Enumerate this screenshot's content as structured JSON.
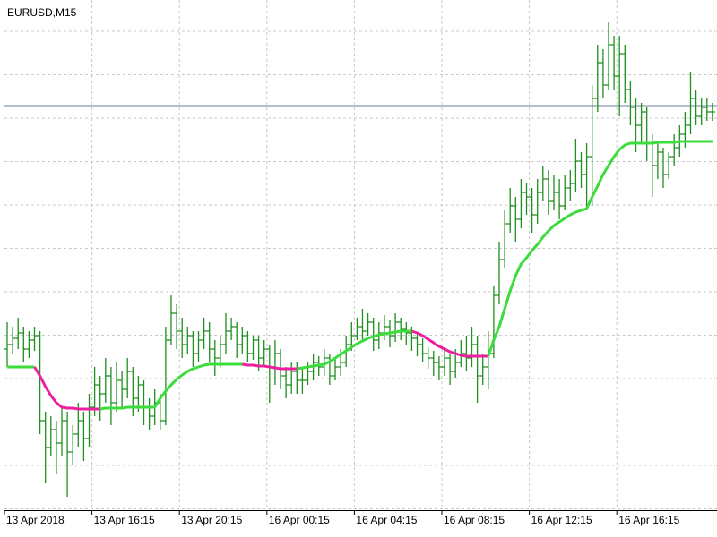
{
  "chart_data": {
    "type": "ohlc",
    "title": "EURUSD,M15",
    "categories": [
      "13 Apr 2018",
      null,
      null,
      null,
      null,
      null,
      null,
      null,
      null,
      null,
      null,
      null,
      null,
      null,
      null,
      null,
      "13 Apr 16:15",
      null,
      null,
      null,
      null,
      null,
      null,
      null,
      null,
      null,
      null,
      null,
      null,
      null,
      null,
      null,
      "13 Apr 20:15",
      null,
      null,
      null,
      null,
      null,
      null,
      null,
      null,
      null,
      null,
      null,
      null,
      null,
      null,
      null,
      "16 Apr 00:15",
      null,
      null,
      null,
      null,
      null,
      null,
      null,
      null,
      null,
      null,
      null,
      null,
      null,
      null,
      null,
      "16 Apr 04:15",
      null,
      null,
      null,
      null,
      null,
      null,
      null,
      null,
      null,
      null,
      null,
      null,
      null,
      null,
      null,
      "16 Apr 08:15",
      null,
      null,
      null,
      null,
      null,
      null,
      null,
      null,
      null,
      null,
      null,
      null,
      null,
      null,
      null,
      "16 Apr 12:15",
      null,
      null,
      null,
      null,
      null,
      null,
      null,
      null,
      null,
      null,
      null,
      null,
      null,
      null,
      null,
      "16 Apr 16:15",
      null,
      null,
      null,
      null,
      null,
      null,
      null,
      null,
      null,
      null,
      null,
      null,
      null,
      null,
      null,
      null,
      null
    ],
    "open": [
      180,
      185,
      192,
      198,
      180,
      190,
      195,
      100,
      70,
      90,
      75,
      100,
      65,
      85,
      100,
      80,
      115,
      140,
      130,
      150,
      120,
      145,
      135,
      155,
      125,
      140,
      115,
      105,
      120,
      100,
      190,
      220,
      200,
      185,
      195,
      175,
      190,
      200,
      180,
      170,
      185,
      200,
      205,
      185,
      195,
      175,
      190,
      170,
      180,
      160,
      175,
      150,
      140,
      155,
      145,
      145,
      155,
      165,
      160,
      170,
      150,
      160,
      165,
      185,
      195,
      205,
      200,
      210,
      190,
      198,
      205,
      195,
      210,
      202,
      198,
      192,
      185,
      175,
      170,
      165,
      160,
      170,
      155,
      165,
      175,
      170,
      185,
      150,
      160,
      175,
      240,
      280,
      320,
      340,
      325,
      355,
      350,
      330,
      355,
      370,
      345,
      355,
      340,
      360,
      365,
      390,
      375,
      395,
      460,
      500,
      475,
      520,
      485,
      510,
      470,
      450,
      430,
      445,
      410,
      385,
      400,
      375,
      395,
      405,
      420,
      430,
      460,
      440,
      450,
      445
    ],
    "high": [
      210,
      205,
      215,
      205,
      200,
      205,
      200,
      110,
      105,
      100,
      115,
      110,
      95,
      120,
      110,
      130,
      160,
      150,
      170,
      160,
      165,
      155,
      170,
      160,
      150,
      145,
      125,
      135,
      130,
      205,
      240,
      230,
      215,
      205,
      200,
      200,
      215,
      210,
      190,
      195,
      220,
      215,
      210,
      205,
      200,
      195,
      195,
      190,
      185,
      190,
      180,
      160,
      165,
      165,
      160,
      165,
      175,
      172,
      180,
      175,
      170,
      180,
      195,
      210,
      215,
      225,
      220,
      215,
      210,
      218,
      212,
      220,
      215,
      210,
      205,
      198,
      192,
      182,
      178,
      172,
      180,
      175,
      180,
      190,
      195,
      205,
      195,
      175,
      200,
      250,
      300,
      335,
      360,
      350,
      370,
      365,
      360,
      370,
      385,
      380,
      375,
      370,
      375,
      380,
      415,
      400,
      410,
      475,
      520,
      515,
      545,
      530,
      530,
      520,
      480,
      460,
      455,
      450,
      420,
      410,
      405,
      400,
      420,
      430,
      445,
      490,
      470,
      460,
      460,
      455
    ],
    "low": [
      160,
      175,
      180,
      165,
      170,
      178,
      85,
      30,
      60,
      40,
      60,
      15,
      50,
      70,
      55,
      70,
      105,
      100,
      120,
      95,
      110,
      115,
      125,
      105,
      110,
      95,
      90,
      95,
      90,
      95,
      185,
      180,
      170,
      175,
      160,
      165,
      180,
      165,
      150,
      160,
      175,
      190,
      170,
      175,
      165,
      168,
      155,
      160,
      120,
      140,
      135,
      125,
      130,
      130,
      130,
      140,
      145,
      150,
      150,
      140,
      145,
      150,
      160,
      178,
      190,
      188,
      195,
      178,
      180,
      190,
      182,
      188,
      190,
      185,
      178,
      172,
      165,
      158,
      150,
      145,
      150,
      140,
      148,
      160,
      155,
      160,
      120,
      140,
      135,
      170,
      230,
      270,
      310,
      300,
      315,
      330,
      310,
      320,
      345,
      330,
      335,
      325,
      335,
      345,
      355,
      360,
      335,
      340,
      445,
      460,
      470,
      470,
      440,
      455,
      430,
      400,
      410,
      390,
      350,
      370,
      360,
      370,
      385,
      395,
      405,
      420,
      430,
      430,
      435,
      435
    ],
    "close": [
      185,
      192,
      198,
      180,
      190,
      195,
      100,
      70,
      90,
      75,
      100,
      65,
      85,
      100,
      80,
      115,
      140,
      130,
      150,
      120,
      145,
      135,
      155,
      125,
      140,
      115,
      105,
      120,
      100,
      190,
      220,
      200,
      185,
      195,
      175,
      190,
      200,
      180,
      170,
      185,
      200,
      205,
      185,
      195,
      175,
      190,
      170,
      180,
      160,
      175,
      150,
      140,
      155,
      145,
      145,
      155,
      165,
      160,
      170,
      150,
      160,
      165,
      185,
      195,
      205,
      200,
      210,
      190,
      198,
      205,
      195,
      210,
      202,
      198,
      192,
      185,
      175,
      170,
      165,
      160,
      170,
      155,
      165,
      175,
      170,
      185,
      150,
      160,
      175,
      240,
      280,
      320,
      340,
      325,
      355,
      350,
      330,
      355,
      370,
      345,
      355,
      340,
      360,
      365,
      390,
      375,
      395,
      460,
      500,
      475,
      520,
      485,
      510,
      470,
      450,
      430,
      445,
      410,
      385,
      400,
      375,
      395,
      405,
      420,
      430,
      460,
      440,
      450,
      445,
      445
    ],
    "color": "#1f8f1f",
    "ma": {
      "values": [
        160,
        160,
        160,
        160,
        160,
        160,
        150,
        138,
        128,
        120,
        115,
        114,
        114,
        113,
        113,
        113,
        113,
        113,
        114,
        114,
        114,
        114,
        115,
        115,
        115,
        115,
        115,
        115,
        125,
        133,
        140,
        146,
        151,
        155,
        158,
        160,
        162,
        163,
        163,
        163,
        163,
        163,
        163,
        163,
        162,
        162,
        161,
        161,
        160,
        159,
        158,
        158,
        158,
        158,
        159,
        160,
        161,
        162,
        163,
        166,
        170,
        174,
        178,
        182,
        186,
        189,
        192,
        194,
        196,
        197,
        198,
        199,
        200,
        200,
        200,
        198,
        195,
        191,
        187,
        183,
        180,
        177,
        175,
        173,
        172,
        172,
        172,
        172,
        172,
        190,
        205,
        225,
        245,
        262,
        275,
        282,
        290,
        297,
        305,
        312,
        318,
        322,
        326,
        330,
        333,
        335,
        337,
        350,
        362,
        375,
        385,
        395,
        403,
        408,
        410,
        410,
        410,
        410,
        410,
        411,
        411,
        411,
        411,
        412,
        412,
        412,
        412,
        412,
        412,
        412
      ],
      "up_color": "#3ddc3d",
      "down_color": "#ee1f9f"
    },
    "hline": {
      "value": 452,
      "color": "#6b7fa6"
    },
    "ylim": [
      0,
      570
    ],
    "grid": true
  }
}
